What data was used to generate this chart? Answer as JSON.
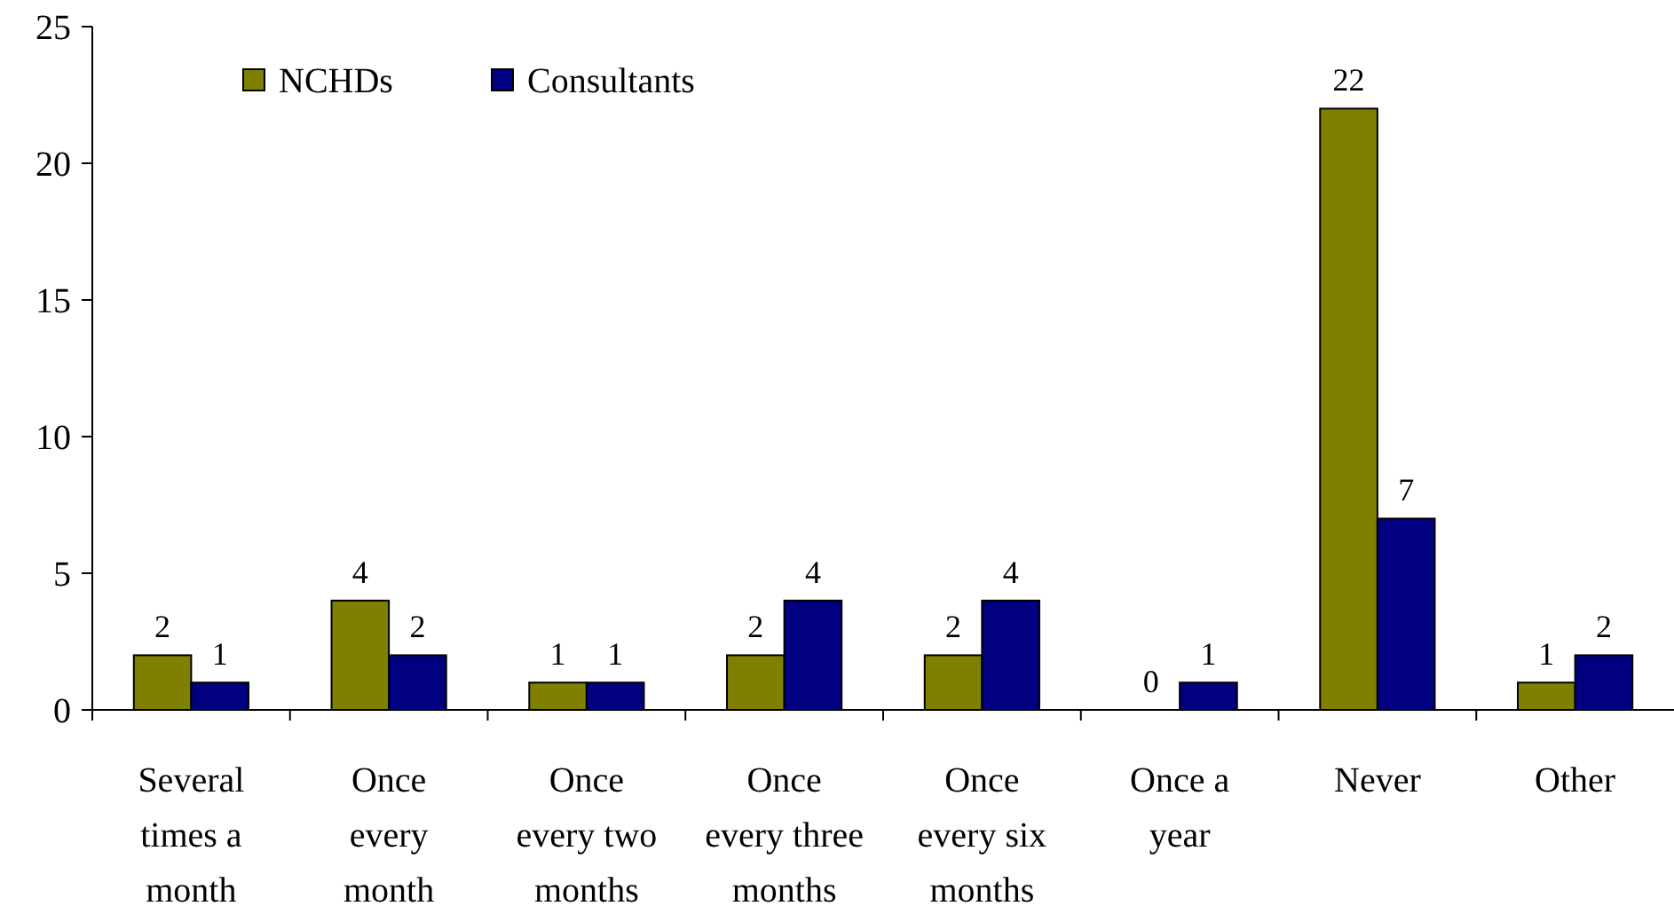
{
  "chart_data": {
    "type": "bar",
    "categories": [
      "Several times a month",
      "Once every month",
      "Once every two months",
      "Once every three months",
      "Once every six months",
      "Once a year",
      "Never",
      "Other"
    ],
    "series": [
      {
        "name": "NCHDs",
        "color": "#808000",
        "values": [
          2,
          4,
          1,
          2,
          2,
          0,
          22,
          1
        ]
      },
      {
        "name": "Consultants",
        "color": "#000080",
        "values": [
          1,
          2,
          1,
          4,
          4,
          1,
          7,
          2
        ]
      }
    ],
    "ylim": [
      0,
      25
    ],
    "yticks": [
      0,
      5,
      10,
      15,
      20,
      25
    ],
    "data_labels": true,
    "legend": "top left",
    "grid": false
  }
}
